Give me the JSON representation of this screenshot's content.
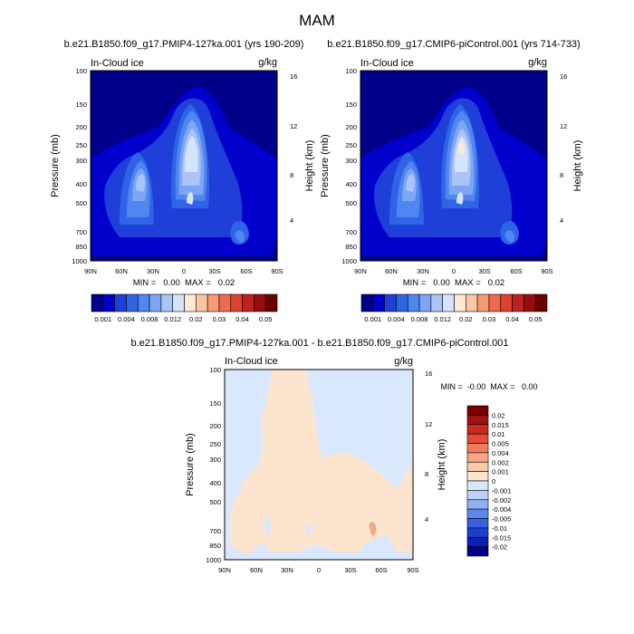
{
  "figure": {
    "title": "MAM",
    "colors": {
      "upper_scale": [
        "#00008b",
        "#0000cd",
        "#1e3fd8",
        "#2f64e6",
        "#4f86f0",
        "#7fa6f5",
        "#aac4f7",
        "#d4e4fb",
        "#ffe8d6",
        "#fcc5a4",
        "#f79a74",
        "#ef6a4e",
        "#e0402e",
        "#c0201f",
        "#980c10",
        "#6a0000"
      ],
      "diff_scale": [
        "#00008b",
        "#0b1fb4",
        "#1c3fd0",
        "#3a62e0",
        "#6088ea",
        "#8fb0f2",
        "#bcd1f7",
        "#d9e8fc",
        "#fde4cf",
        "#fbcaa8",
        "#f7a683",
        "#f07b5b",
        "#e54a33",
        "#cc2a1f",
        "#a11310",
        "#7a0000"
      ]
    }
  },
  "chart_data": [
    {
      "type": "contour",
      "title": "b.e21.B1850.f09_g17.PMIP4-127ka.001 (yrs 190-209)",
      "label_left": "In-Cloud ice",
      "label_right": "g/kg",
      "xlabel": "",
      "ylabel": "Pressure (mb)",
      "ylabel_right": "Height (km)",
      "x_ticks": [
        "90N",
        "60N",
        "30N",
        "0",
        "30S",
        "60S",
        "90S"
      ],
      "y_ticks": [
        "100",
        "150",
        "200",
        "250",
        "300",
        "400",
        "500",
        "700",
        "850",
        "1000"
      ],
      "y_ticks_right": [
        "16",
        "12",
        "8",
        "4"
      ],
      "min_text": "MIN =   0.00  MAX =   0.02",
      "colorbar_labels": [
        "0.001",
        "0.004",
        "0.008",
        "0.012",
        "0.02",
        "0.03",
        "0.04",
        "0.05"
      ],
      "levels": [
        0.001,
        0.002,
        0.004,
        0.006,
        0.008,
        0.01,
        0.012,
        0.015,
        0.02,
        0.025,
        0.03,
        0.035,
        0.04,
        0.045,
        0.05
      ]
    },
    {
      "type": "contour",
      "title": "b.e21.B1850.f09_g17.CMIP6-piControl.001 (yrs 714-733)",
      "label_left": "In-Cloud ice",
      "label_right": "g/kg",
      "xlabel": "",
      "ylabel": "Pressure (mb)",
      "ylabel_right": "Height (km)",
      "x_ticks": [
        "90N",
        "60N",
        "30N",
        "0",
        "30S",
        "60S",
        "90S"
      ],
      "y_ticks": [
        "100",
        "150",
        "200",
        "250",
        "300",
        "400",
        "500",
        "700",
        "850",
        "1000"
      ],
      "y_ticks_right": [
        "16",
        "12",
        "8",
        "4"
      ],
      "min_text": "MIN =   0.00  MAX =   0.02",
      "colorbar_labels": [
        "0.001",
        "0.004",
        "0.008",
        "0.012",
        "0.02",
        "0.03",
        "0.04",
        "0.05"
      ],
      "levels": [
        0.001,
        0.002,
        0.004,
        0.006,
        0.008,
        0.01,
        0.012,
        0.015,
        0.02,
        0.025,
        0.03,
        0.035,
        0.04,
        0.045,
        0.05
      ]
    },
    {
      "type": "contour",
      "title": "b.e21.B1850.f09_g17.PMIP4-127ka.001 - b.e21.B1850.f09_g17.CMIP6-piControl.001",
      "label_left": "In-Cloud ice",
      "label_right": "g/kg",
      "xlabel": "",
      "ylabel": "Pressure (mb)",
      "ylabel_right": "Height (km)",
      "x_ticks": [
        "90N",
        "60N",
        "30N",
        "0",
        "30S",
        "60S",
        "90S"
      ],
      "y_ticks": [
        "100",
        "150",
        "200",
        "250",
        "300",
        "400",
        "500",
        "700",
        "850",
        "1000"
      ],
      "y_ticks_right": [
        "16",
        "12",
        "8",
        "4"
      ],
      "min_text": "MIN =  -0.00  MAX =   0.00",
      "colorbar_labels": [
        "0.02",
        "0.015",
        "0.01",
        "0.005",
        "0.004",
        "0.002",
        "0.001",
        "0",
        "-0.001",
        "-0.002",
        "-0.004",
        "-0.005",
        "-0.01",
        "-0.015",
        "-0.02"
      ]
    }
  ]
}
